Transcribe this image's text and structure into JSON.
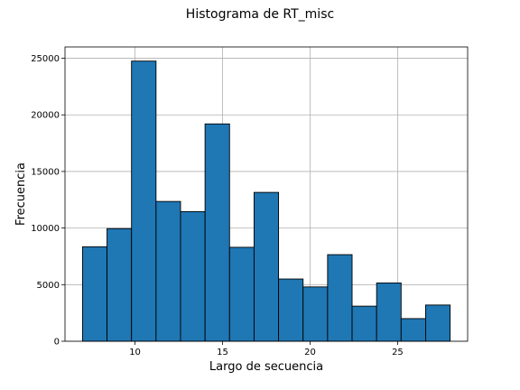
{
  "chart_data": {
    "type": "bar",
    "title": "Histograma de RT_misc",
    "xlabel": "Largo de secuencia",
    "ylabel": "Frecuencia",
    "bin_edges": [
      7,
      8.4,
      9.8,
      11.2,
      12.6,
      14,
      15.4,
      16.8,
      18.2,
      19.6,
      21,
      22.4,
      23.8,
      25.2,
      26.6,
      28
    ],
    "values": [
      8350,
      9950,
      24750,
      12350,
      11450,
      19200,
      8300,
      13150,
      5500,
      4800,
      7650,
      3100,
      5150,
      2000,
      3200
    ],
    "xlim": [
      6,
      29
    ],
    "ylim": [
      0,
      26000
    ],
    "x_ticks": [
      10,
      15,
      20,
      25
    ],
    "y_ticks": [
      0,
      5000,
      10000,
      15000,
      20000,
      25000
    ],
    "grid": true,
    "colors": {
      "bar": "#1f77b4",
      "edge": "#000000",
      "grid": "#b0b0b0"
    }
  }
}
